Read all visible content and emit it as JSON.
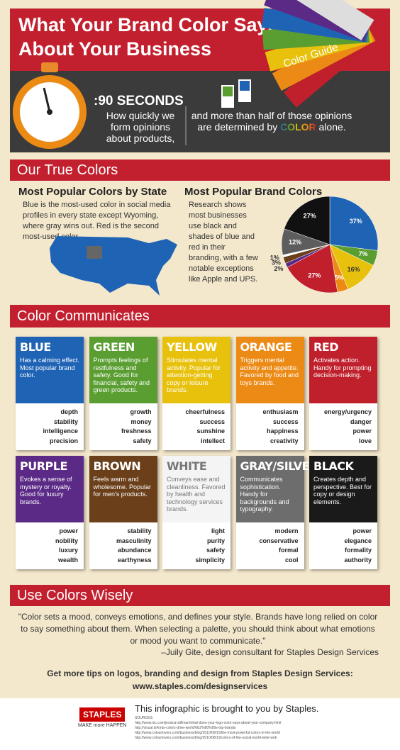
{
  "header": {
    "title_lines": [
      "What Your Brand Color Says",
      "About Your Business"
    ],
    "guide_label": "Color Guide"
  },
  "stat": {
    "time": ":90 SECONDS",
    "left": "How quickly we form opinions about products,",
    "right": "and more than half of those opinions are determined by",
    "color_word": "COLOR",
    "right_end": "alone."
  },
  "true_colors": {
    "title": "Our True Colors",
    "state": {
      "heading": "Most Popular Colors by State",
      "text": "Blue is the most-used color in social media profiles in every state except Wyoming, where gray wins out. Red is the second most-used color."
    },
    "brand": {
      "heading": "Most Popular Brand Colors",
      "text": "Research shows most businesses use black and shades of blue and red in their branding, with a few notable exceptions like Apple and UPS.",
      "pie": {
        "values": [
          37,
          7,
          16,
          5,
          27,
          2,
          3,
          1,
          12,
          27
        ],
        "value_labels": [
          "37%",
          "7%",
          "16%",
          "5%",
          "27%",
          "2%",
          "3%",
          "1%",
          "12%",
          "27%"
        ],
        "colors": [
          "#1f63b5",
          "#5a9e32",
          "#e8c10c",
          "#ec8a16",
          "#c0202c",
          "#5b2a86",
          "#6a3f1a",
          "#ffffff",
          "#5d5d5d",
          "#111111"
        ]
      }
    }
  },
  "communicates": {
    "title": "Color Communicates",
    "cards": [
      {
        "name": "BLUE",
        "color": "#1f63b5",
        "text": "Has a calming effect. Most popular brand color.",
        "words": [
          "depth",
          "stability",
          "intelligence",
          "precision"
        ]
      },
      {
        "name": "GREEN",
        "color": "#5a9e32",
        "text": "Prompts feelings of restfulness and safety. Good for financial, safety and green products.",
        "words": [
          "growth",
          "money",
          "freshness",
          "safety"
        ]
      },
      {
        "name": "YELLOW",
        "color": "#e8c10c",
        "text": "Stimulates mental activity. Popular for attention-getting copy or leisure brands.",
        "words": [
          "cheerfulness",
          "success",
          "sunshine",
          "intellect"
        ]
      },
      {
        "name": "ORANGE",
        "color": "#ec8a16",
        "text": "Triggers mental activity and appetite. Favored by food and toys brands.",
        "words": [
          "enthusiasm",
          "success",
          "happiness",
          "creativity"
        ]
      },
      {
        "name": "RED",
        "color": "#c0202c",
        "text": "Activates action. Handy for prompting decision-making.",
        "words": [
          "energy/urgency",
          "danger",
          "power",
          "love"
        ]
      },
      {
        "name": "PURPLE",
        "color": "#5b2a86",
        "text": "Evokes a sense of mystery or royalty. Good for luxury brands.",
        "words": [
          "power",
          "nobility",
          "luxury",
          "wealth"
        ]
      },
      {
        "name": "BROWN",
        "color": "#6a3f1a",
        "text": "Feels warm and wholesome. Popular for men's products.",
        "words": [
          "stability",
          "masculinity",
          "abundance",
          "earthyness"
        ]
      },
      {
        "name": "WHITE",
        "color": "#f4f4f4",
        "text": "Conveys ease and cleanliness. Favored by health and technology services brands.",
        "words": [
          "light",
          "purity",
          "safety",
          "simplicity"
        ]
      },
      {
        "name": "GRAY/SILVER",
        "color": "#6d6d6d",
        "text": "Communicates sophistication. Handy for backgrounds and typography.",
        "words": [
          "modern",
          "conservative",
          "formal",
          "cool"
        ]
      },
      {
        "name": "BLACK",
        "color": "#1a1a1a",
        "text": "Creates depth and perspective. Best for copy or design elements.",
        "words": [
          "power",
          "elegance",
          "formality",
          "authority"
        ]
      }
    ]
  },
  "wisely": {
    "title": "Use Colors Wisely",
    "quote": "\"Color sets a mood, conveys emotions, and defines your style. Brands have long relied on color to say something about them. When selecting a palette, you should think about what emotions or mood you want to communicate.\"",
    "attribution": "–Juily Gite, design consultant for Staples Design Services",
    "tips": "Get more tips on logos, branding and design from Staples Design Services:",
    "url": "www.staples.com/designservices"
  },
  "footer": {
    "logo": "STAPLES",
    "tagline": "MAKE more HAPPEN",
    "credit": "This infographic is brought to you by Staples.",
    "sources_label": "SOURCES:",
    "sources": [
      "http://www.inc.com/jessica-stillman/what-does-your-logo-color-says-about-your-company.html",
      "http://visual.ly/fonts-colors-drive-world%E2%80%99s-top-brands",
      "http://www.colourlovers.com/business/blog/2010/09/15/the-most-powerful-colors-in-the-world",
      "http://www.colourlovers.com/business/blog/2010/08/19/colors-of-the-social-world-wide-web"
    ]
  }
}
